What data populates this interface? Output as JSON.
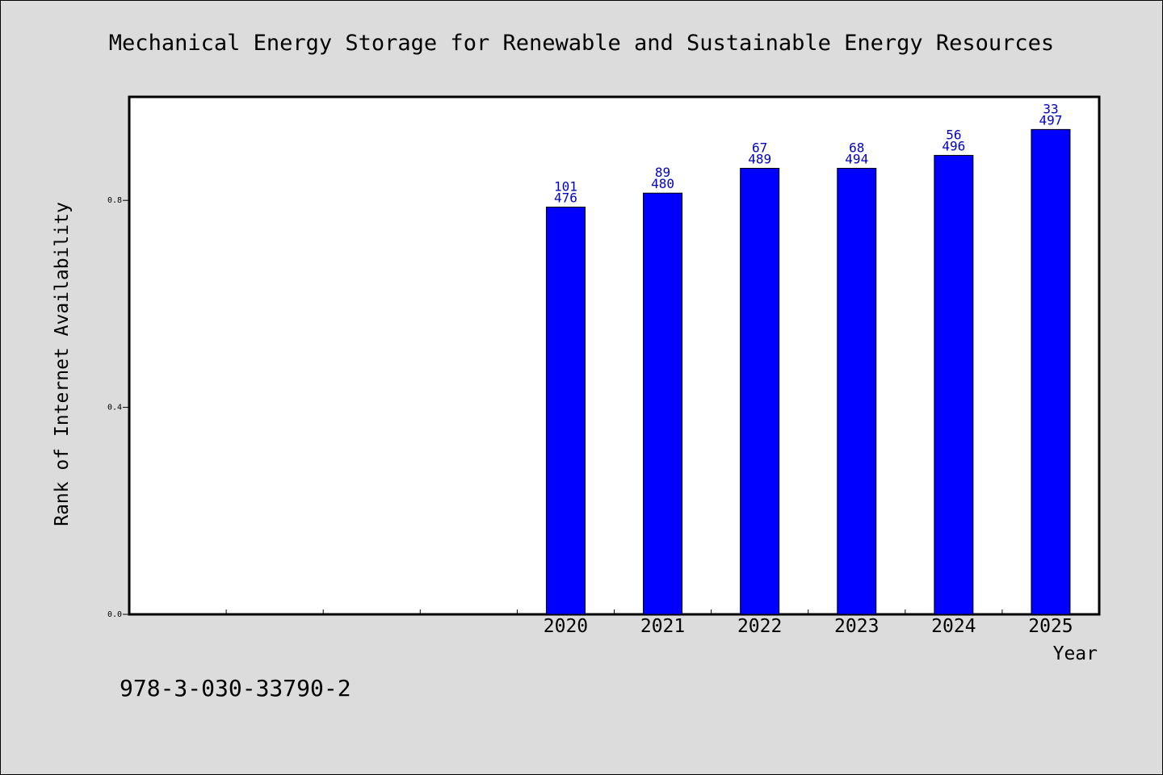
{
  "chart_data": {
    "type": "bar",
    "title": "Mechanical Energy Storage for Renewable and Sustainable Energy Resources",
    "xlabel": "Year",
    "ylabel": "Rank of Internet Availability",
    "categories": [
      "",
      "",
      "",
      "",
      "2020",
      "2021",
      "2022",
      "2023",
      "2024",
      "2025"
    ],
    "series": [
      {
        "values": [
          null,
          null,
          null,
          null,
          0.787,
          0.814,
          0.862,
          0.862,
          0.887,
          0.937
        ],
        "label_top": [
          null,
          null,
          null,
          null,
          "101",
          "89",
          "67",
          "68",
          "56",
          "33"
        ],
        "label_bottom": [
          null,
          null,
          null,
          null,
          "476",
          "480",
          "489",
          "494",
          "496",
          "497"
        ]
      }
    ],
    "yticks": [
      0.0,
      0.4,
      0.8
    ],
    "ytick_labels": [
      "0.0",
      "0.4",
      "0.8"
    ],
    "ylim": [
      0,
      1.0
    ],
    "grid": false,
    "bar_color": "#0000ff",
    "label_color": "#0000c8",
    "plot_background": "#ffffff",
    "figure_background": "#dcdcdc"
  },
  "footer": {
    "isbn": "978-3-030-33790-2"
  }
}
